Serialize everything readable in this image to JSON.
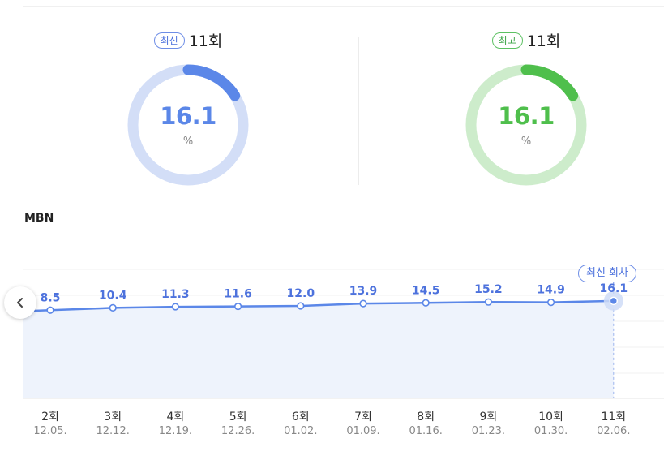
{
  "cards": [
    {
      "badge": "최신",
      "episode": "11회",
      "value": "16.1",
      "unit": "%",
      "progress": 0.161,
      "accent": "#5b87e8",
      "track": "#d3def7"
    },
    {
      "badge": "최고",
      "episode": "11회",
      "value": "16.1",
      "unit": "%",
      "progress": 0.161,
      "accent": "#4fbf4c",
      "track": "#cdeccb"
    }
  ],
  "section": {
    "title": "MBN"
  },
  "latest_tag": "최신 회차",
  "colors": {
    "line": "#5b87e8",
    "area": "#eef3fc",
    "value_text": "#4d72dd"
  },
  "chart_data": {
    "type": "area",
    "categories": [
      "2회",
      "3회",
      "4회",
      "5회",
      "6회",
      "7회",
      "8회",
      "9회",
      "10회",
      "11회"
    ],
    "dates": [
      "12.05.",
      "12.12.",
      "12.19.",
      "12.26.",
      "01.02.",
      "01.09.",
      "01.16.",
      "01.23.",
      "01.30.",
      "02.06."
    ],
    "values": [
      8.5,
      10.4,
      11.3,
      11.6,
      12.0,
      13.9,
      14.5,
      15.2,
      14.9,
      16.1
    ],
    "value_labels": [
      "8.5",
      "10.4",
      "11.3",
      "11.6",
      "12.0",
      "13.9",
      "14.5",
      "15.2",
      "14.9",
      "16.1"
    ],
    "highlight_index": 9,
    "ylim": [
      -64,
      50
    ],
    "grid": true,
    "legend": "none"
  }
}
